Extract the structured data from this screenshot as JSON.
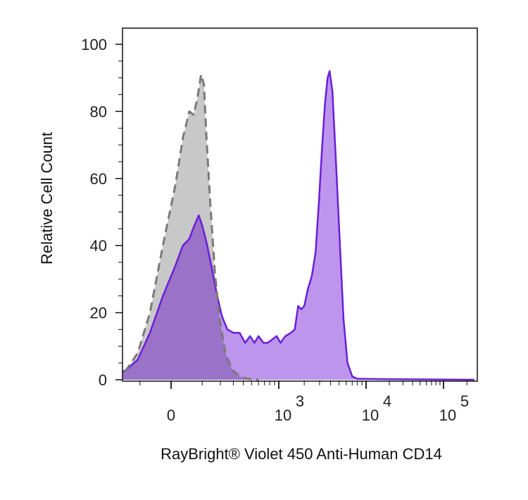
{
  "chart_data": {
    "type": "area",
    "ylabel": "Relative Cell Count",
    "xlabel": "RayBright® Violet 450 Anti-Human CD14",
    "x_scale": "biexponential (log above ~10^3)",
    "ylim": [
      0,
      105
    ],
    "y_ticks": [
      {
        "value": 0,
        "label": "0"
      },
      {
        "value": 20,
        "label": "20"
      },
      {
        "value": 40,
        "label": "40"
      },
      {
        "value": 60,
        "label": "60"
      },
      {
        "value": 80,
        "label": "80"
      },
      {
        "value": 100,
        "label": "100"
      }
    ],
    "x_ticks": [
      {
        "base": "0",
        "exp": ""
      },
      {
        "base": "10",
        "exp": "3"
      },
      {
        "base": "10",
        "exp": "4"
      },
      {
        "base": "10",
        "exp": "5"
      }
    ],
    "grid": false,
    "legend": "none",
    "colors": {
      "control_fill": "#c8c8c8",
      "control_line": "#7a7a7a",
      "stained_fill": "#b98cec",
      "stained_line": "#6a1fd6",
      "overlap_fill": "#9a72c8"
    },
    "series": [
      {
        "style": "gray-dashed",
        "points": [
          [
            -800,
            0
          ],
          [
            -400,
            0.3
          ],
          [
            -250,
            1
          ],
          [
            -170,
            3
          ],
          [
            -110,
            8
          ],
          [
            -60,
            20
          ],
          [
            -20,
            40
          ],
          [
            10,
            58
          ],
          [
            30,
            72
          ],
          [
            50,
            80
          ],
          [
            65,
            79
          ],
          [
            80,
            84
          ],
          [
            95,
            91
          ],
          [
            108,
            88
          ],
          [
            120,
            72
          ],
          [
            140,
            52
          ],
          [
            165,
            32
          ],
          [
            195,
            18
          ],
          [
            235,
            8
          ],
          [
            290,
            3
          ],
          [
            360,
            1
          ],
          [
            450,
            0.3
          ],
          [
            600,
            0
          ]
        ]
      },
      {
        "style": "purple-solid",
        "points": [
          [
            -800,
            0
          ],
          [
            -400,
            0.3
          ],
          [
            -250,
            1
          ],
          [
            -170,
            3
          ],
          [
            -110,
            6
          ],
          [
            -60,
            14
          ],
          [
            -20,
            25
          ],
          [
            10,
            34
          ],
          [
            30,
            40
          ],
          [
            50,
            42
          ],
          [
            68,
            46
          ],
          [
            85,
            49
          ],
          [
            100,
            46
          ],
          [
            120,
            41
          ],
          [
            145,
            34
          ],
          [
            175,
            26
          ],
          [
            210,
            19
          ],
          [
            250,
            15
          ],
          [
            300,
            14
          ],
          [
            360,
            14
          ],
          [
            420,
            11
          ],
          [
            480,
            13
          ],
          [
            540,
            11
          ],
          [
            600,
            13
          ],
          [
            680,
            11
          ],
          [
            760,
            11
          ],
          [
            850,
            12
          ],
          [
            950,
            13
          ],
          [
            1050,
            11
          ],
          [
            1200,
            13
          ],
          [
            1400,
            14
          ],
          [
            1550,
            15
          ],
          [
            1700,
            22
          ],
          [
            1850,
            21
          ],
          [
            2000,
            22
          ],
          [
            2200,
            27
          ],
          [
            2450,
            31
          ],
          [
            2700,
            38
          ],
          [
            2950,
            53
          ],
          [
            3200,
            69
          ],
          [
            3450,
            82
          ],
          [
            3700,
            90
          ],
          [
            3900,
            92
          ],
          [
            4200,
            86
          ],
          [
            4600,
            65
          ],
          [
            5100,
            40
          ],
          [
            5600,
            18
          ],
          [
            6200,
            5
          ],
          [
            7000,
            1
          ],
          [
            8000,
            0.3
          ],
          [
            15000,
            0.2
          ],
          [
            60000,
            0.1
          ],
          [
            250000,
            0
          ]
        ]
      }
    ]
  }
}
